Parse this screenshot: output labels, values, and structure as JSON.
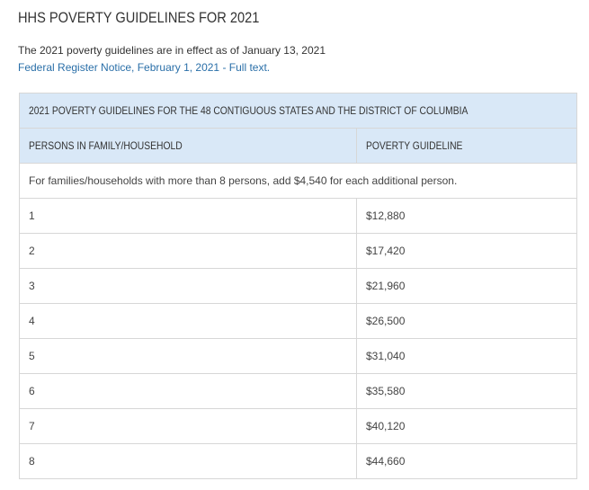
{
  "page": {
    "title": "HHS POVERTY GUIDELINES FOR 2021",
    "intro": "The 2021 poverty guidelines are in effect as of January 13, 2021",
    "link_text": "Federal Register Notice, February 1, 2021 - Full text."
  },
  "table": {
    "caption": "2021 POVERTY GUIDELINES FOR THE 48 CONTIGUOUS STATES AND THE DISTRICT OF COLUMBIA",
    "headers": [
      "PERSONS IN FAMILY/HOUSEHOLD",
      "POVERTY GUIDELINE"
    ],
    "note": "For families/households with more than 8 persons, add $4,540 for each additional person.",
    "rows": [
      {
        "persons": "1",
        "guideline": "$12,880"
      },
      {
        "persons": "2",
        "guideline": "$17,420"
      },
      {
        "persons": "3",
        "guideline": "$21,960"
      },
      {
        "persons": "4",
        "guideline": "$26,500"
      },
      {
        "persons": "5",
        "guideline": "$31,040"
      },
      {
        "persons": "6",
        "guideline": "$35,580"
      },
      {
        "persons": "7",
        "guideline": "$40,120"
      },
      {
        "persons": "8",
        "guideline": "$44,660"
      }
    ]
  },
  "colors": {
    "header_bg": "#d9e8f7",
    "link": "#2a6fa8",
    "border": "#d7d7d7"
  }
}
